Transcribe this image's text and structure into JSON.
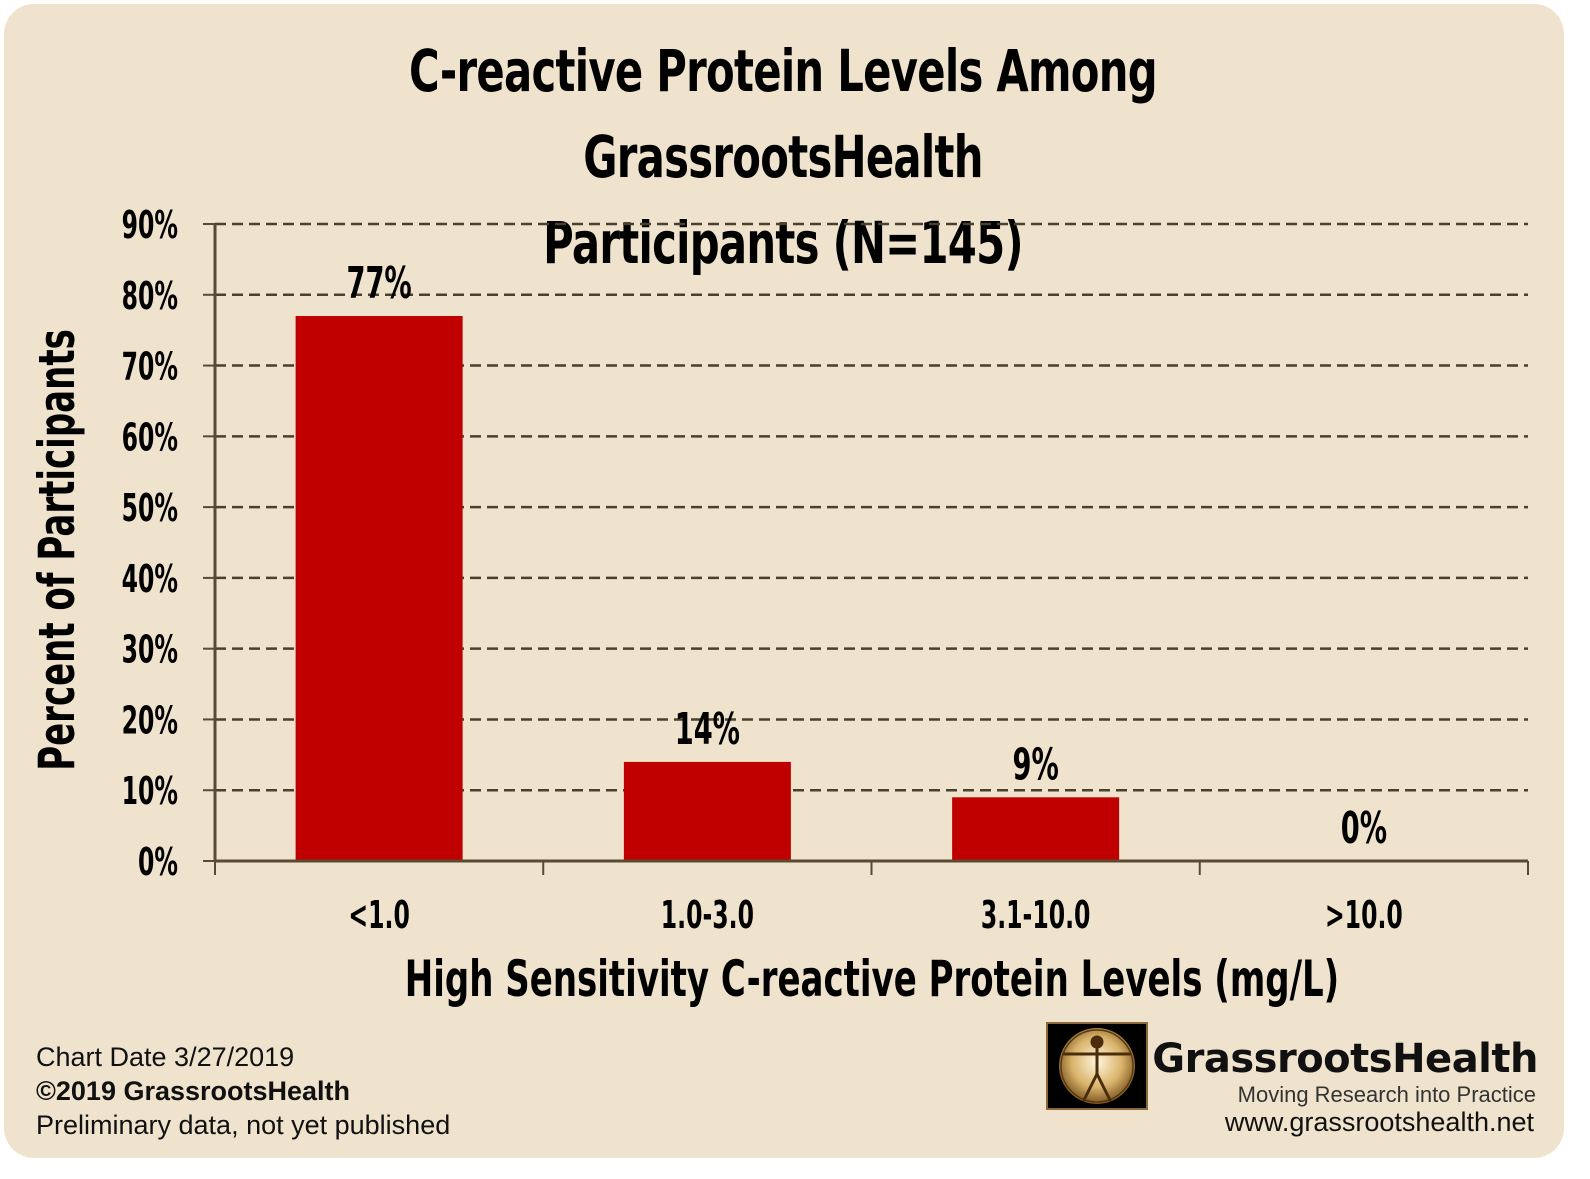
{
  "chart_data": {
    "type": "bar",
    "title_line1": "C-reactive Protein Levels Among GrassrootsHealth",
    "title_line2": "Participants (N=145)",
    "xlabel": "High Sensitivity C-reactive Protein Levels (mg/L)",
    "ylabel": "Percent of Participants",
    "categories": [
      "<1.0",
      "1.0-3.0",
      "3.1-10.0",
      ">10.0"
    ],
    "values": [
      77,
      14,
      9,
      0
    ],
    "data_labels": [
      "77%",
      "14%",
      "9%",
      "0%"
    ],
    "ylim": [
      0,
      90
    ],
    "yticks": [
      0,
      10,
      20,
      30,
      40,
      50,
      60,
      70,
      80,
      90
    ],
    "ytick_labels": [
      "0%",
      "10%",
      "20%",
      "30%",
      "40%",
      "50%",
      "60%",
      "70%",
      "80%",
      "90%"
    ],
    "grid": "dashed horizontal",
    "bar_color": "#c00000"
  },
  "footer": {
    "chart_date": "Chart Date 3/27/2019",
    "copyright": "©2019 GrassrootsHealth",
    "note": "Preliminary data, not yet published"
  },
  "brand": {
    "name": "GrassrootsHealth",
    "tagline": "Moving Research into Practice",
    "website": "www.grassrootshealth.net",
    "logo_icon": "vitruvian-man-icon"
  },
  "colors": {
    "background": "#efe3cd",
    "axis": "#5a4a32",
    "grid": "#4a4030"
  }
}
